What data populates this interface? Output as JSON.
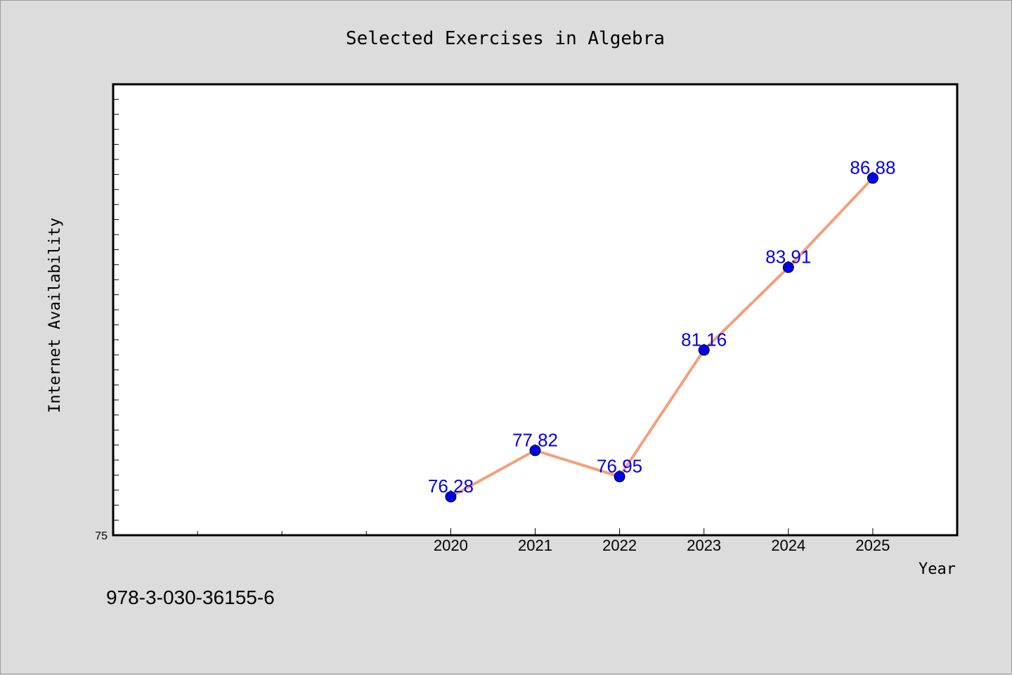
{
  "chart_data": {
    "type": "line",
    "title": "Selected Exercises in Algebra",
    "xlabel": "Year",
    "ylabel": "Internet Availability",
    "x": [
      2020,
      2021,
      2022,
      2023,
      2024,
      2025
    ],
    "x_tick_labels": [
      "2020",
      "2021",
      "2022",
      "2023",
      "2024",
      "2025"
    ],
    "series": [
      {
        "values": [
          76.28,
          77.82,
          76.95,
          81.16,
          83.91,
          86.88
        ],
        "labels": [
          "76.28",
          "77.82",
          "76.95",
          "81.16",
          "83.91",
          "86.88"
        ]
      }
    ],
    "xlim": [
      2016,
      2026
    ],
    "ylim": [
      75,
      90
    ],
    "y_tick_labels": [
      "75"
    ],
    "grid": false,
    "line_color": "#f4a07a",
    "marker_color": "#0000ee",
    "label_color": "#0000ee"
  },
  "footer": {
    "isbn": "978-3-030-36155-6"
  }
}
